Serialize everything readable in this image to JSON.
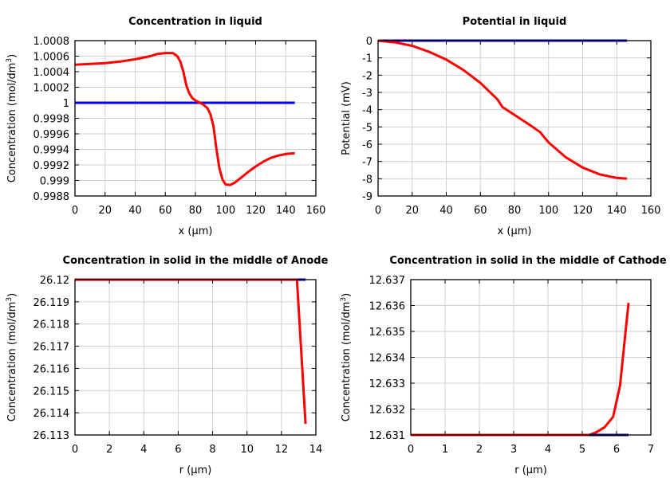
{
  "chart_data": [
    {
      "type": "line",
      "title": "Concentration in liquid",
      "xlabel": "x (µm)",
      "ylabel": "Concentration (mol/dm3)",
      "xlim": [
        0,
        160
      ],
      "ylim": [
        0.9988,
        1.0008
      ],
      "xticks": [
        "0",
        "20",
        "40",
        "60",
        "80",
        "100",
        "120",
        "140",
        "160"
      ],
      "yticks": [
        "0.9988",
        "0.999",
        "0.9992",
        "0.9994",
        "0.9996",
        "0.9998",
        "1",
        "1.0002",
        "1.0004",
        "1.0006",
        "1.0008"
      ],
      "xtickvals": [
        0,
        20,
        40,
        60,
        80,
        100,
        120,
        140,
        160
      ],
      "ytickvals": [
        0.9988,
        0.999,
        0.9992,
        0.9994,
        0.9996,
        0.9998,
        1,
        1.0002,
        1.0004,
        1.0006,
        1.0008
      ],
      "grid": true,
      "series": [
        {
          "color": "#0000ff",
          "x": [
            0,
            146
          ],
          "y": [
            1,
            1
          ]
        },
        {
          "color": "#ff0000",
          "x": [
            0,
            10,
            20,
            30,
            40,
            50,
            55,
            60,
            65,
            68,
            70,
            72,
            74,
            76,
            78,
            80,
            82,
            85,
            88,
            90,
            92,
            94,
            96,
            98,
            100,
            103,
            106,
            110,
            115,
            120,
            125,
            130,
            135,
            140,
            146
          ],
          "y": [
            1.00049,
            1.0005,
            1.00051,
            1.00053,
            1.00056,
            1.0006,
            1.00063,
            1.00064,
            1.00064,
            1.0006,
            1.00053,
            1.0004,
            1.00022,
            1.00012,
            1.00006,
            1.00003,
            1.00001,
            0.99998,
            0.99993,
            0.99985,
            0.9997,
            0.9994,
            0.99915,
            0.99901,
            0.99895,
            0.99894,
            0.99897,
            0.99903,
            0.99911,
            0.99918,
            0.99924,
            0.99929,
            0.99932,
            0.99934,
            0.99935
          ]
        }
      ]
    },
    {
      "type": "line",
      "title": "Potential in liquid",
      "xlabel": "x (µm)",
      "ylabel": "Potential (mV)",
      "xlim": [
        0,
        160
      ],
      "ylim": [
        -9,
        0
      ],
      "xticks": [
        "0",
        "20",
        "40",
        "60",
        "80",
        "100",
        "120",
        "140",
        "160"
      ],
      "yticks": [
        "-9",
        "-8",
        "-7",
        "-6",
        "-5",
        "-4",
        "-3",
        "-2",
        "-1",
        "0"
      ],
      "xtickvals": [
        0,
        20,
        40,
        60,
        80,
        100,
        120,
        140,
        160
      ],
      "ytickvals": [
        -9,
        -8,
        -7,
        -6,
        -5,
        -4,
        -3,
        -2,
        -1,
        0
      ],
      "grid": true,
      "series": [
        {
          "color": "#0000ff",
          "x": [
            0,
            146
          ],
          "y": [
            0,
            0
          ]
        },
        {
          "color": "#ff0000",
          "x": [
            0,
            10,
            20,
            30,
            40,
            50,
            60,
            70,
            73,
            80,
            90,
            95,
            100,
            110,
            120,
            130,
            140,
            146
          ],
          "y": [
            0,
            -0.1,
            -0.3,
            -0.65,
            -1.1,
            -1.7,
            -2.45,
            -3.4,
            -3.85,
            -4.3,
            -4.95,
            -5.3,
            -5.9,
            -6.75,
            -7.35,
            -7.75,
            -7.95,
            -8.0
          ]
        }
      ]
    },
    {
      "type": "line",
      "title": "Concentration in solid in the middle of Anode",
      "xlabel": "r (µm)",
      "ylabel": "Concentration (mol/dm3)",
      "xlim": [
        0,
        14
      ],
      "ylim": [
        26.113,
        26.12
      ],
      "xticks": [
        "0",
        "2",
        "4",
        "6",
        "8",
        "10",
        "12",
        "14"
      ],
      "yticks": [
        "26.113",
        "26.114",
        "26.115",
        "26.116",
        "26.117",
        "26.118",
        "26.119",
        "26.12"
      ],
      "xtickvals": [
        0,
        2,
        4,
        6,
        8,
        10,
        12,
        14
      ],
      "ytickvals": [
        26.113,
        26.114,
        26.115,
        26.116,
        26.117,
        26.118,
        26.119,
        26.12
      ],
      "grid": true,
      "series": [
        {
          "color": "#0000ff",
          "x": [
            0,
            13.4
          ],
          "y": [
            26.12,
            26.12
          ]
        },
        {
          "color": "#ff0000",
          "x": [
            0,
            12.9,
            13.4
          ],
          "y": [
            26.12,
            26.12,
            26.1135
          ]
        }
      ]
    },
    {
      "type": "line",
      "title": "Concentration in solid in the middle of Cathode",
      "xlabel": "r (µm)",
      "ylabel": "Concentration (mol/dm3)",
      "xlim": [
        0,
        7
      ],
      "ylim": [
        12.631,
        12.637
      ],
      "xticks": [
        "0",
        "1",
        "2",
        "3",
        "4",
        "5",
        "6",
        "7"
      ],
      "yticks": [
        "12.631",
        "12.632",
        "12.633",
        "12.634",
        "12.635",
        "12.636",
        "12.637"
      ],
      "xtickvals": [
        0,
        1,
        2,
        3,
        4,
        5,
        6,
        7
      ],
      "ytickvals": [
        12.631,
        12.632,
        12.633,
        12.634,
        12.635,
        12.636,
        12.637
      ],
      "grid": true,
      "series": [
        {
          "color": "#ff0000",
          "x": [
            0,
            5.2,
            5.4,
            5.65,
            5.9,
            6.1,
            6.35
          ],
          "y": [
            12.631,
            12.631,
            12.6311,
            12.6313,
            12.6317,
            12.6329,
            12.6361
          ]
        },
        {
          "color": "#000080",
          "x": [
            5.2,
            6.35
          ],
          "y": [
            12.631,
            12.631
          ]
        }
      ]
    }
  ]
}
